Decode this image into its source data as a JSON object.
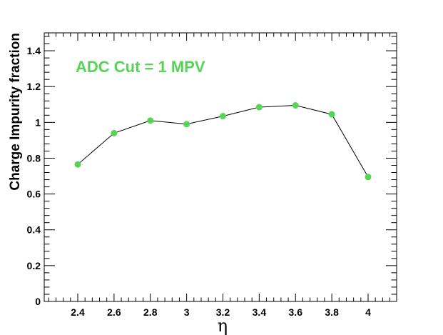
{
  "chart_data": {
    "type": "line",
    "title": "",
    "xlabel": "η",
    "ylabel": "Charge Impurity fraction",
    "annotation": "ADC Cut = 1 MPV",
    "xlim": [
      2.22,
      4.16
    ],
    "ylim": [
      0,
      1.5
    ],
    "x_ticks": [
      2.4,
      2.6,
      2.8,
      3,
      3.2,
      3.4,
      3.6,
      3.8,
      4
    ],
    "x_tick_labels": [
      "2.4",
      "2.6",
      "2.8",
      "3",
      "3.2",
      "3.4",
      "3.6",
      "3.8",
      "4"
    ],
    "y_ticks": [
      0,
      0.2,
      0.4,
      0.6,
      0.8,
      1,
      1.2,
      1.4
    ],
    "y_tick_labels": [
      "0",
      "0.2",
      "0.4",
      "0.6",
      "0.8",
      "1",
      "1.2",
      "1.4"
    ],
    "grid": false,
    "series": [
      {
        "x": [
          2.4,
          2.6,
          2.8,
          3.0,
          3.2,
          3.4,
          3.6,
          3.8,
          4.0
        ],
        "values": [
          0.765,
          0.94,
          1.01,
          0.99,
          1.035,
          1.085,
          1.095,
          1.045,
          0.695
        ]
      }
    ],
    "colors": {
      "marker": "#55d455",
      "line": "#000000",
      "annotation": "#55d455"
    }
  }
}
